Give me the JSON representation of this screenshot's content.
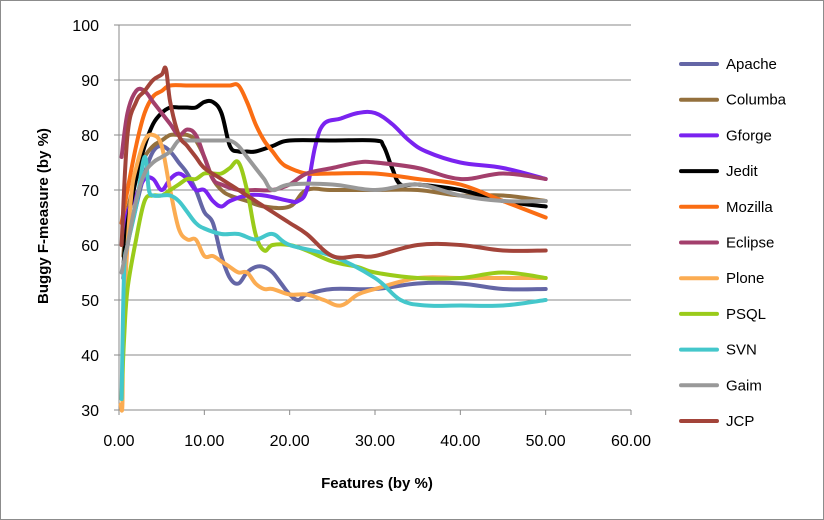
{
  "chart_data": {
    "type": "line",
    "title": "",
    "xlabel": "Features (by %)",
    "ylabel": "Buggy F-measure (by %)",
    "xlim": [
      0,
      60
    ],
    "ylim": [
      30,
      100
    ],
    "xticks": [
      0,
      10,
      20,
      30,
      40,
      50,
      60
    ],
    "xtick_labels": [
      "0.00",
      "10.00",
      "20.00",
      "30.00",
      "40.00",
      "50.00",
      "60.00"
    ],
    "yticks": [
      30,
      40,
      50,
      60,
      70,
      80,
      90,
      100
    ],
    "ytick_labels": [
      "30",
      "40",
      "50",
      "60",
      "70",
      "80",
      "90",
      "100"
    ],
    "grid": "horizontal",
    "legend_position": "right",
    "series": [
      {
        "name": "Apache",
        "color": "#6466a6",
        "points": [
          [
            0.5,
            54
          ],
          [
            1.0,
            60
          ],
          [
            2.0,
            67
          ],
          [
            3.0,
            73
          ],
          [
            4.0,
            77
          ],
          [
            5.0,
            78
          ],
          [
            6.0,
            77
          ],
          [
            7.0,
            75
          ],
          [
            8.0,
            73
          ],
          [
            9.0,
            70
          ],
          [
            10.0,
            66
          ],
          [
            11.0,
            64
          ],
          [
            12.0,
            58
          ],
          [
            13.0,
            54
          ],
          [
            14.0,
            53
          ],
          [
            15.0,
            55
          ],
          [
            16.0,
            56
          ],
          [
            17.0,
            56
          ],
          [
            18.0,
            55
          ],
          [
            19.0,
            53
          ],
          [
            20.0,
            51
          ],
          [
            21.0,
            50
          ],
          [
            22.0,
            51
          ],
          [
            25.0,
            52
          ],
          [
            30.0,
            52
          ],
          [
            35.0,
            53
          ],
          [
            40.0,
            53
          ],
          [
            45.0,
            52
          ],
          [
            50.0,
            52
          ]
        ]
      },
      {
        "name": "Columba",
        "color": "#94703d",
        "points": [
          [
            0.5,
            58
          ],
          [
            1.0,
            66
          ],
          [
            2.0,
            72
          ],
          [
            3.0,
            76
          ],
          [
            4.0,
            78
          ],
          [
            5.0,
            79
          ],
          [
            6.0,
            80
          ],
          [
            7.0,
            80
          ],
          [
            8.0,
            80
          ],
          [
            9.0,
            79
          ],
          [
            10.0,
            76
          ],
          [
            11.0,
            72
          ],
          [
            12.0,
            70
          ],
          [
            13.0,
            69
          ],
          [
            15.0,
            68
          ],
          [
            17.0,
            67
          ],
          [
            20.0,
            67
          ],
          [
            22.0,
            70
          ],
          [
            25.0,
            70
          ],
          [
            30.0,
            70
          ],
          [
            35.0,
            70
          ],
          [
            40.0,
            69
          ],
          [
            45.0,
            69
          ],
          [
            50.0,
            68
          ]
        ]
      },
      {
        "name": "Gforge",
        "color": "#7a23f0",
        "points": [
          [
            0.5,
            62
          ],
          [
            1.0,
            66
          ],
          [
            2.0,
            69
          ],
          [
            3.0,
            72
          ],
          [
            4.0,
            72
          ],
          [
            5.0,
            70
          ],
          [
            6.0,
            72
          ],
          [
            7.0,
            73
          ],
          [
            8.0,
            72
          ],
          [
            9.0,
            70
          ],
          [
            10.0,
            70
          ],
          [
            11.0,
            68
          ],
          [
            12.0,
            67
          ],
          [
            13.0,
            68
          ],
          [
            15.0,
            69
          ],
          [
            17.0,
            69
          ],
          [
            20.0,
            68
          ],
          [
            21.0,
            68
          ],
          [
            22.0,
            70
          ],
          [
            23.0,
            78
          ],
          [
            24.0,
            82
          ],
          [
            26.0,
            83
          ],
          [
            28.0,
            84
          ],
          [
            30.0,
            84
          ],
          [
            32.0,
            82
          ],
          [
            34.0,
            79
          ],
          [
            36.0,
            77
          ],
          [
            40.0,
            75
          ],
          [
            45.0,
            74
          ],
          [
            50.0,
            72
          ]
        ]
      },
      {
        "name": "Jedit",
        "color": "#000000",
        "points": [
          [
            0.5,
            56
          ],
          [
            1.0,
            64
          ],
          [
            2.0,
            72
          ],
          [
            3.0,
            78
          ],
          [
            4.0,
            82
          ],
          [
            5.0,
            84
          ],
          [
            6.0,
            85
          ],
          [
            7.0,
            85
          ],
          [
            8.0,
            85
          ],
          [
            9.0,
            85
          ],
          [
            10.0,
            86
          ],
          [
            11.0,
            86
          ],
          [
            12.0,
            84
          ],
          [
            13.0,
            78
          ],
          [
            14.0,
            77
          ],
          [
            15.0,
            77
          ],
          [
            16.0,
            77
          ],
          [
            18.0,
            78
          ],
          [
            20.0,
            79
          ],
          [
            25.0,
            79
          ],
          [
            30.0,
            79
          ],
          [
            31.0,
            78
          ],
          [
            32.0,
            74
          ],
          [
            33.0,
            71
          ],
          [
            35.0,
            71
          ],
          [
            40.0,
            70
          ],
          [
            45.0,
            68
          ],
          [
            50.0,
            67
          ]
        ]
      },
      {
        "name": "Mozilla",
        "color": "#fa6d13",
        "points": [
          [
            0.3,
            64
          ],
          [
            1.0,
            70
          ],
          [
            2.0,
            78
          ],
          [
            3.0,
            84
          ],
          [
            4.0,
            87
          ],
          [
            5.0,
            88
          ],
          [
            6.0,
            89
          ],
          [
            8.0,
            89
          ],
          [
            10.0,
            89
          ],
          [
            12.0,
            89
          ],
          [
            13.0,
            89
          ],
          [
            14.0,
            89
          ],
          [
            15.0,
            86
          ],
          [
            16.0,
            82
          ],
          [
            17.0,
            79
          ],
          [
            18.0,
            77
          ],
          [
            19.0,
            75
          ],
          [
            20.0,
            74
          ],
          [
            22.0,
            73
          ],
          [
            25.0,
            73
          ],
          [
            30.0,
            73
          ],
          [
            35.0,
            72
          ],
          [
            40.0,
            71
          ],
          [
            45.0,
            68
          ],
          [
            50.0,
            65
          ]
        ]
      },
      {
        "name": "Eclipse",
        "color": "#a33f6c",
        "points": [
          [
            0.3,
            76
          ],
          [
            1.0,
            84
          ],
          [
            2.0,
            88
          ],
          [
            3.0,
            88
          ],
          [
            4.0,
            86
          ],
          [
            5.0,
            84
          ],
          [
            6.0,
            82
          ],
          [
            7.0,
            80
          ],
          [
            8.0,
            81
          ],
          [
            9.0,
            80
          ],
          [
            10.0,
            76
          ],
          [
            11.0,
            72
          ],
          [
            12.0,
            71
          ],
          [
            14.0,
            70
          ],
          [
            16.0,
            70
          ],
          [
            18.0,
            70
          ],
          [
            20.0,
            71
          ],
          [
            22.0,
            73
          ],
          [
            25.0,
            74
          ],
          [
            28.0,
            75
          ],
          [
            30.0,
            75
          ],
          [
            35.0,
            74
          ],
          [
            40.0,
            72
          ],
          [
            45.0,
            73
          ],
          [
            50.0,
            72
          ]
        ]
      },
      {
        "name": "Plone",
        "color": "#fbac52",
        "points": [
          [
            0.2,
            31
          ],
          [
            0.4,
            31
          ],
          [
            0.5,
            45
          ],
          [
            1.0,
            60
          ],
          [
            1.5,
            70
          ],
          [
            2.0,
            74
          ],
          [
            3.0,
            79
          ],
          [
            4.0,
            80
          ],
          [
            5.0,
            78
          ],
          [
            6.0,
            70
          ],
          [
            7.0,
            63
          ],
          [
            8.0,
            61
          ],
          [
            9.0,
            61
          ],
          [
            10.0,
            58
          ],
          [
            11.0,
            58
          ],
          [
            12.0,
            57
          ],
          [
            13.0,
            56
          ],
          [
            14.0,
            55
          ],
          [
            15.0,
            55
          ],
          [
            16.0,
            53
          ],
          [
            17.0,
            52
          ],
          [
            18.0,
            52
          ],
          [
            20.0,
            51
          ],
          [
            22.0,
            51
          ],
          [
            24.0,
            50
          ],
          [
            26.0,
            49
          ],
          [
            28.0,
            51
          ],
          [
            30.0,
            52
          ],
          [
            35.0,
            54
          ],
          [
            40.0,
            54
          ],
          [
            45.0,
            54
          ],
          [
            50.0,
            54
          ]
        ]
      },
      {
        "name": "PSQL",
        "color": "#9acb1a",
        "points": [
          [
            0.3,
            32
          ],
          [
            0.6,
            43
          ],
          [
            1.0,
            52
          ],
          [
            2.0,
            61
          ],
          [
            3.0,
            68
          ],
          [
            4.0,
            69
          ],
          [
            5.0,
            69
          ],
          [
            6.0,
            70
          ],
          [
            7.0,
            71
          ],
          [
            8.0,
            72
          ],
          [
            9.0,
            72
          ],
          [
            10.0,
            73
          ],
          [
            11.0,
            73
          ],
          [
            12.0,
            73
          ],
          [
            13.0,
            74
          ],
          [
            14.0,
            75
          ],
          [
            15.0,
            70
          ],
          [
            16.0,
            62
          ],
          [
            17.0,
            59
          ],
          [
            18.0,
            60
          ],
          [
            20.0,
            60
          ],
          [
            22.0,
            59
          ],
          [
            25.0,
            57
          ],
          [
            28.0,
            56
          ],
          [
            30.0,
            55
          ],
          [
            35.0,
            54
          ],
          [
            40.0,
            54
          ],
          [
            45.0,
            55
          ],
          [
            50.0,
            54
          ]
        ]
      },
      {
        "name": "SVN",
        "color": "#44c7cb",
        "points": [
          [
            0.3,
            32
          ],
          [
            0.6,
            55
          ],
          [
            1.0,
            60
          ],
          [
            2.0,
            67
          ],
          [
            3.0,
            76
          ],
          [
            3.5,
            70
          ],
          [
            4.0,
            69
          ],
          [
            5.0,
            69
          ],
          [
            6.0,
            69
          ],
          [
            7.0,
            68
          ],
          [
            8.0,
            66
          ],
          [
            9.0,
            64
          ],
          [
            10.0,
            63
          ],
          [
            12.0,
            62
          ],
          [
            14.0,
            62
          ],
          [
            16.0,
            61
          ],
          [
            18.0,
            62
          ],
          [
            20.0,
            60
          ],
          [
            25.0,
            58
          ],
          [
            30.0,
            54
          ],
          [
            33.0,
            50
          ],
          [
            36.0,
            49
          ],
          [
            40.0,
            49
          ],
          [
            45.0,
            49
          ],
          [
            50.0,
            50
          ]
        ]
      },
      {
        "name": "Gaim",
        "color": "#999999",
        "points": [
          [
            0.3,
            55
          ],
          [
            1.0,
            60
          ],
          [
            2.0,
            68
          ],
          [
            3.0,
            73
          ],
          [
            4.0,
            75
          ],
          [
            5.0,
            76
          ],
          [
            6.0,
            77
          ],
          [
            7.0,
            79
          ],
          [
            8.0,
            79
          ],
          [
            10.0,
            79
          ],
          [
            12.0,
            79
          ],
          [
            13.0,
            79
          ],
          [
            14.0,
            78
          ],
          [
            15.0,
            76
          ],
          [
            16.0,
            74
          ],
          [
            17.0,
            72
          ],
          [
            18.0,
            70
          ],
          [
            20.0,
            71
          ],
          [
            25.0,
            71
          ],
          [
            30.0,
            70
          ],
          [
            35.0,
            71
          ],
          [
            40.0,
            69
          ],
          [
            45.0,
            68
          ],
          [
            50.0,
            68
          ]
        ]
      },
      {
        "name": "JCP",
        "color": "#a3443a",
        "points": [
          [
            0.3,
            60
          ],
          [
            1.0,
            80
          ],
          [
            2.0,
            86
          ],
          [
            3.0,
            88
          ],
          [
            4.0,
            90
          ],
          [
            5.0,
            91
          ],
          [
            5.5,
            92
          ],
          [
            6.0,
            86
          ],
          [
            7.0,
            80
          ],
          [
            8.0,
            78
          ],
          [
            9.0,
            76
          ],
          [
            10.0,
            74
          ],
          [
            12.0,
            72
          ],
          [
            14.0,
            70
          ],
          [
            16.0,
            68
          ],
          [
            18.0,
            66
          ],
          [
            20.0,
            64
          ],
          [
            22.0,
            62
          ],
          [
            25.0,
            58
          ],
          [
            28.0,
            58
          ],
          [
            30.0,
            58
          ],
          [
            35.0,
            60
          ],
          [
            40.0,
            60
          ],
          [
            45.0,
            59
          ],
          [
            50.0,
            59
          ]
        ]
      }
    ]
  }
}
